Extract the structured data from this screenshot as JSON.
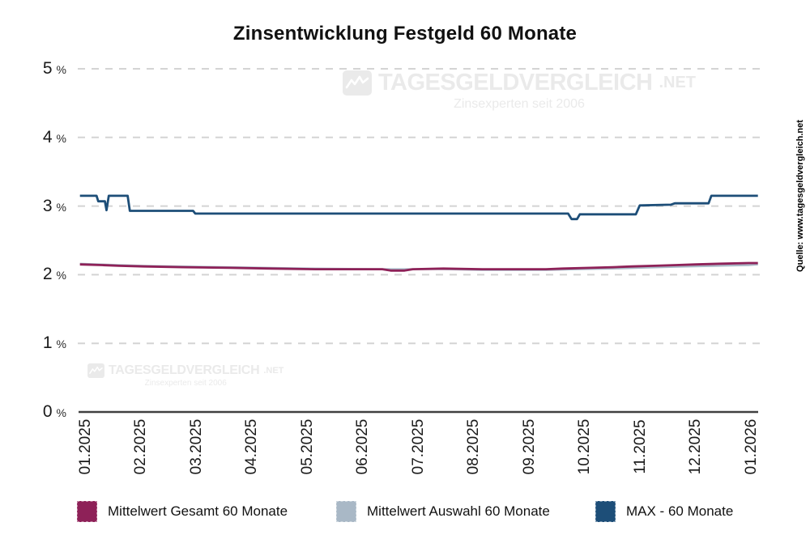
{
  "watermark": {
    "brand": "TAGESGELDVERGLEICH",
    "tld": ".NET",
    "tagline": "Zinsexperten seit 2006"
  },
  "source_note": "Quelle: www.tagesgeldvergleich.net",
  "colors": {
    "grid": "#d4d4d4",
    "axis": "#404040",
    "mittelwert_gesamt": "#8E2158",
    "mittelwert_auswahl": "#A9B8C6",
    "max": "#1D4E78",
    "watermark": "#eaeaea"
  },
  "chart_data": {
    "type": "line",
    "title": "Zinsentwicklung Festgeld 60 Monate",
    "xlabel": "",
    "ylabel": "",
    "ylim": [
      0,
      5
    ],
    "grid": "horizontal-dashed",
    "legend_position": "bottom",
    "y_ticks": [
      {
        "label": "0",
        "unit": "%",
        "value": 0
      },
      {
        "label": "1",
        "unit": "%",
        "value": 1
      },
      {
        "label": "2",
        "unit": "%",
        "value": 2
      },
      {
        "label": "3",
        "unit": "%",
        "value": 3
      },
      {
        "label": "4",
        "unit": "%",
        "value": 4
      },
      {
        "label": "5",
        "unit": "%",
        "value": 5
      }
    ],
    "x_tick_labels": [
      "01.2025",
      "02.2025",
      "03.2025",
      "04.2025",
      "05.2025",
      "06.2025",
      "07.2025",
      "08.2025",
      "09.2025",
      "10.2025",
      "11.2025",
      "12.2025",
      "01.2026"
    ],
    "x_unit": "months (0 = 01.2025 tick)",
    "series": [
      {
        "name": "Mittelwert Gesamt 60 Monate",
        "color": "#8E2158",
        "width": 2.8,
        "points": [
          [
            -0.1,
            2.15
          ],
          [
            0.3,
            2.14
          ],
          [
            0.6,
            2.13
          ],
          [
            1.05,
            2.12
          ],
          [
            1.75,
            2.11
          ],
          [
            2.6,
            2.1
          ],
          [
            3.35,
            2.09
          ],
          [
            4.15,
            2.08
          ],
          [
            5.35,
            2.08
          ],
          [
            5.5,
            2.06
          ],
          [
            5.75,
            2.06
          ],
          [
            5.9,
            2.08
          ],
          [
            6.45,
            2.09
          ],
          [
            7.15,
            2.08
          ],
          [
            8.3,
            2.08
          ],
          [
            8.6,
            2.09
          ],
          [
            9.1,
            2.1
          ],
          [
            9.5,
            2.11
          ],
          [
            9.85,
            2.12
          ],
          [
            10.25,
            2.13
          ],
          [
            10.65,
            2.14
          ],
          [
            11.0,
            2.15
          ],
          [
            11.45,
            2.16
          ],
          [
            11.95,
            2.17
          ],
          [
            12.12,
            2.17
          ]
        ]
      },
      {
        "name": "Mittelwert Auswahl 60 Monate",
        "color": "#A9B8C6",
        "width": 2.4,
        "points": [
          [
            -0.1,
            2.16
          ],
          [
            0.6,
            2.14
          ],
          [
            1.05,
            2.13
          ],
          [
            1.75,
            2.12
          ],
          [
            2.6,
            2.11
          ],
          [
            3.35,
            2.1
          ],
          [
            4.15,
            2.09
          ],
          [
            5.35,
            2.08
          ],
          [
            6.45,
            2.08
          ],
          [
            7.15,
            2.07
          ],
          [
            8.3,
            2.07
          ],
          [
            8.9,
            2.08
          ],
          [
            9.5,
            2.09
          ],
          [
            9.95,
            2.1
          ],
          [
            10.4,
            2.11
          ],
          [
            10.9,
            2.12
          ],
          [
            11.4,
            2.13
          ],
          [
            11.95,
            2.14
          ],
          [
            12.12,
            2.15
          ]
        ]
      },
      {
        "name": "MAX - 60 Monate",
        "color": "#1D4E78",
        "width": 2.8,
        "points": [
          [
            -0.1,
            3.15
          ],
          [
            0.2,
            3.15
          ],
          [
            0.23,
            3.07
          ],
          [
            0.35,
            3.07
          ],
          [
            0.38,
            2.94
          ],
          [
            0.42,
            3.15
          ],
          [
            0.76,
            3.15
          ],
          [
            0.8,
            2.93
          ],
          [
            1.94,
            2.93
          ],
          [
            1.98,
            2.89
          ],
          [
            8.7,
            2.89
          ],
          [
            8.76,
            2.81
          ],
          [
            8.86,
            2.81
          ],
          [
            8.91,
            2.88
          ],
          [
            9.92,
            2.88
          ],
          [
            9.99,
            3.01
          ],
          [
            10.55,
            3.02
          ],
          [
            10.62,
            3.04
          ],
          [
            11.23,
            3.04
          ],
          [
            11.28,
            3.15
          ],
          [
            12.12,
            3.15
          ]
        ]
      }
    ],
    "legend": [
      {
        "label": "Mittelwert Gesamt 60 Monate",
        "color": "#8E2158"
      },
      {
        "label": "Mittelwert Auswahl 60 Monate",
        "color": "#A9B8C6"
      },
      {
        "label": "MAX - 60 Monate",
        "color": "#1D4E78"
      }
    ]
  }
}
